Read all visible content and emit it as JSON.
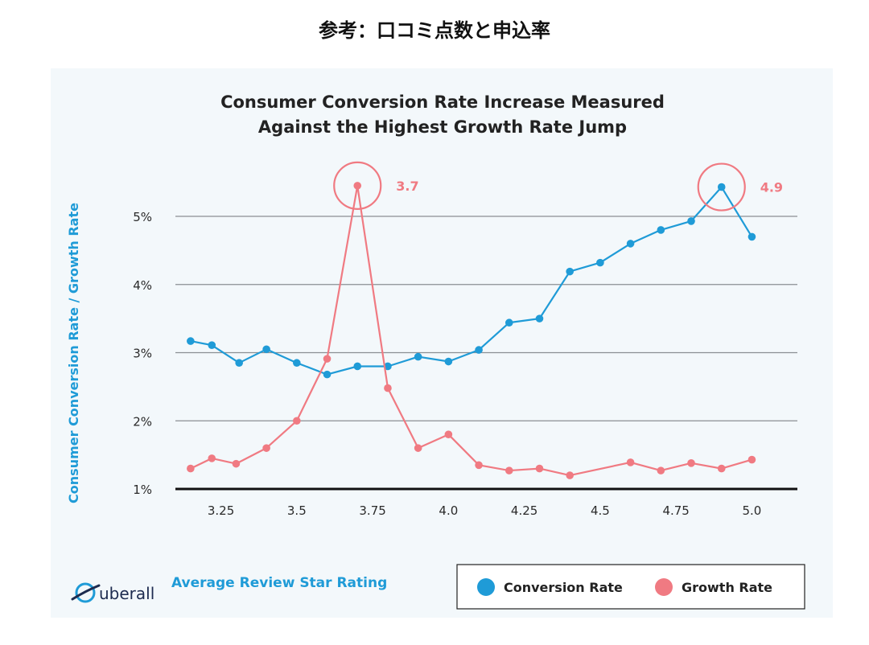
{
  "page": {
    "heading": "参考：口コミ点数と申込率"
  },
  "logo": {
    "text": "uberall"
  },
  "chart_data": {
    "type": "line",
    "title_lines": [
      "Consumer Conversion Rate Increase Measured",
      "Against the Highest Growth Rate Jump"
    ],
    "xlabel": "Average Review Star Rating",
    "ylabel": "Consumer Conversion Rate / Growth Rate",
    "xlim": [
      3.1,
      5.15
    ],
    "ylim": [
      1,
      5
    ],
    "x_ticks": [
      3.25,
      3.5,
      3.75,
      4.0,
      4.25,
      4.5,
      4.75,
      5.0
    ],
    "x_tick_labels": [
      "3.25",
      "3.5",
      "3.75",
      "4.0",
      "4.25",
      "4.5",
      "4.75",
      "5.0"
    ],
    "y_ticks": [
      1,
      2,
      3,
      4,
      5
    ],
    "y_tick_labels": [
      "1%",
      "2%",
      "3%",
      "4%",
      "5%"
    ],
    "grid": "horizontal",
    "legend_position": "bottom-right",
    "series": [
      {
        "name": "Conversion Rate",
        "color": "#1f9bd7",
        "points": [
          [
            3.15,
            3.17
          ],
          [
            3.22,
            3.11
          ],
          [
            3.31,
            2.85
          ],
          [
            3.4,
            3.05
          ],
          [
            3.5,
            2.85
          ],
          [
            3.6,
            2.68
          ],
          [
            3.7,
            2.8
          ],
          [
            3.8,
            2.8
          ],
          [
            3.9,
            2.94
          ],
          [
            4.0,
            2.87
          ],
          [
            4.1,
            3.04
          ],
          [
            4.2,
            3.44
          ],
          [
            4.3,
            3.5
          ],
          [
            4.4,
            4.19
          ],
          [
            4.5,
            4.32
          ],
          [
            4.6,
            4.6
          ],
          [
            4.7,
            4.8
          ],
          [
            4.8,
            4.93
          ],
          [
            4.9,
            5.43
          ],
          [
            5.0,
            4.7
          ]
        ]
      },
      {
        "name": "Growth Rate",
        "color": "#f07a82",
        "points": [
          [
            3.15,
            1.3
          ],
          [
            3.22,
            1.45
          ],
          [
            3.3,
            1.37
          ],
          [
            3.4,
            1.6
          ],
          [
            3.5,
            2.0
          ],
          [
            3.6,
            2.91
          ],
          [
            3.7,
            5.45
          ],
          [
            3.8,
            2.48
          ],
          [
            3.9,
            1.6
          ],
          [
            4.0,
            1.8
          ],
          [
            4.1,
            1.35
          ],
          [
            4.2,
            1.27
          ],
          [
            4.3,
            1.3
          ],
          [
            4.4,
            1.2
          ],
          [
            4.6,
            1.39
          ],
          [
            4.7,
            1.27
          ],
          [
            4.8,
            1.38
          ],
          [
            4.9,
            1.3
          ],
          [
            5.0,
            1.43
          ]
        ]
      }
    ],
    "annotations": [
      {
        "label": "3.7",
        "series": "Growth Rate",
        "x": 3.7,
        "y": 5.45
      },
      {
        "label": "4.9",
        "series": "Conversion Rate",
        "x": 4.9,
        "y": 5.43
      }
    ]
  }
}
